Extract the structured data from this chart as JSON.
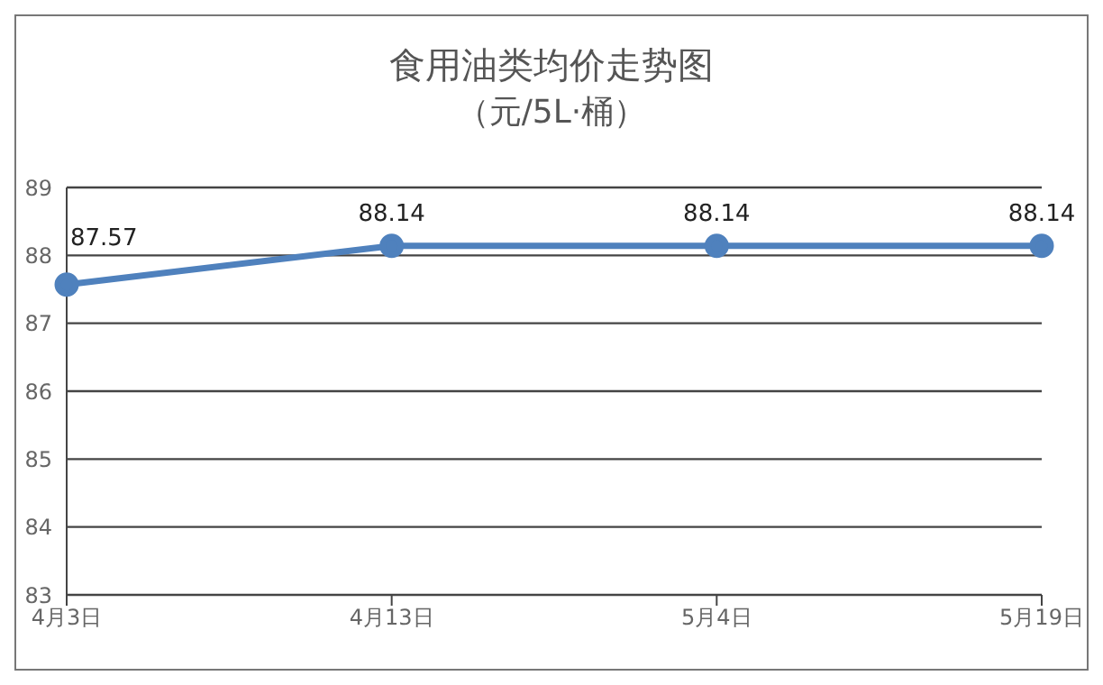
{
  "chart_data": {
    "type": "line",
    "title": "食用油类均价走势图",
    "subtitle": "（元/5L·桶）",
    "categories": [
      "4月3日",
      "4月13日",
      "5月4日",
      "5月19日"
    ],
    "series": [
      {
        "color": "#4f81bd",
        "values": [
          87.57,
          88.14,
          88.14,
          88.14
        ]
      }
    ],
    "ylim": [
      83,
      89
    ],
    "yticks": [
      83,
      84,
      85,
      86,
      87,
      88,
      89
    ],
    "grid": "y",
    "legend": false,
    "marker": "circle",
    "line_style": "solid",
    "data_labels": true
  }
}
